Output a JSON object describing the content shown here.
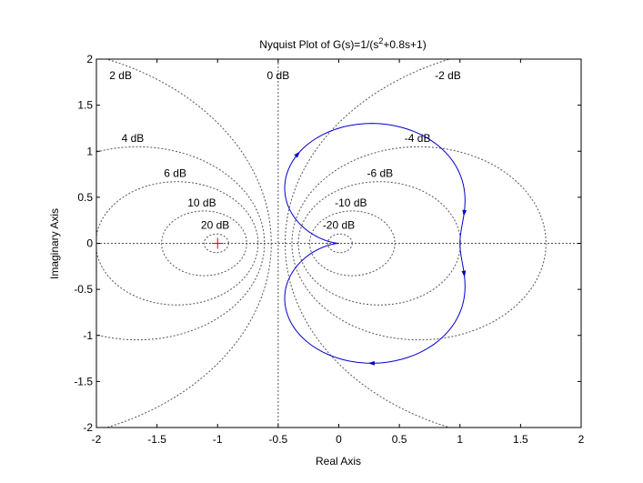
{
  "chart_data": {
    "type": "line",
    "title": "Nyquist Plot of G(s)=1/(s²+0.8s+1)",
    "xlabel": "Real Axis",
    "ylabel": "Imaginary Axis",
    "xlim": [
      -2,
      2
    ],
    "ylim": [
      -2,
      2
    ],
    "xticks": [
      -2,
      -1.5,
      -1,
      -0.5,
      0,
      0.5,
      1,
      1.5,
      2
    ],
    "yticks": [
      -2,
      -1.5,
      -1,
      -0.5,
      0,
      0.5,
      1,
      1.5,
      2
    ],
    "xtick_labels": [
      "-2",
      "-1.5",
      "-1",
      "-0.5",
      "0",
      "0.5",
      "1",
      "1.5",
      "2"
    ],
    "ytick_labels": [
      "-2",
      "-1.5",
      "-1",
      "-0.5",
      "0",
      "0.5",
      "1",
      "1.5",
      "2"
    ],
    "grid": "M-circles",
    "critical_point": [
      -1,
      0
    ],
    "grid_labels": [
      {
        "text": "2 dB",
        "x": -1.8,
        "y": 1.82
      },
      {
        "text": "0 dB",
        "x": -0.5,
        "y": 1.82
      },
      {
        "text": "-2 dB",
        "x": 0.9,
        "y": 1.82
      },
      {
        "text": "4 dB",
        "x": -1.7,
        "y": 1.14
      },
      {
        "text": "-4 dB",
        "x": 0.65,
        "y": 1.14
      },
      {
        "text": "6 dB",
        "x": -1.35,
        "y": 0.76
      },
      {
        "text": "-6 dB",
        "x": 0.34,
        "y": 0.76
      },
      {
        "text": "10 dB",
        "x": -1.13,
        "y": 0.44
      },
      {
        "text": "-10 dB",
        "x": 0.1,
        "y": 0.44
      },
      {
        "text": "20 dB",
        "x": -1.02,
        "y": 0.2
      },
      {
        "text": "-20 dB",
        "x": 0.0,
        "y": 0.2
      }
    ],
    "series": [
      {
        "system": "G(s)=1/(s^2+0.8s+1)",
        "color": "#0000cc",
        "omega_range": [
          -100,
          100
        ]
      }
    ]
  }
}
